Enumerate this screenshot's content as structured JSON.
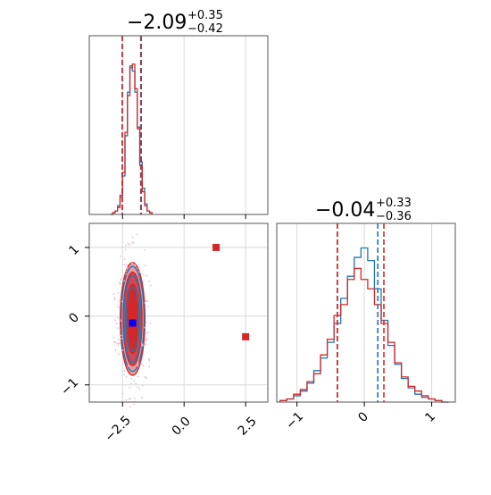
{
  "chart_data": {
    "type": "corner",
    "params": [
      {
        "title": {
          "value": "−2.09",
          "upper": "+0.35",
          "lower": "−0.42"
        },
        "xlim": [
          -3.85,
          3.4
        ],
        "xticks": [
          -2.5,
          0.0,
          2.5
        ],
        "xtick_labels": [
          "−2.5",
          "0.0",
          "2.5"
        ],
        "quantiles_red": [
          -2.51,
          -1.74
        ],
        "quantiles_blue": [
          -2.51,
          -1.76
        ],
        "histogram_bins": [
          -2.95,
          -2.85,
          -2.75,
          -2.65,
          -2.55,
          -2.45,
          -2.35,
          -2.25,
          -2.15,
          -2.05,
          -1.95,
          -1.85,
          -1.75,
          -1.65,
          -1.55,
          -1.45,
          -1.35
        ],
        "histogram_blue": [
          0,
          0.01,
          0.02,
          0.05,
          0.1,
          0.22,
          0.45,
          0.7,
          0.85,
          0.82,
          0.7,
          0.5,
          0.3,
          0.15,
          0.06,
          0.02,
          0.01
        ],
        "histogram_red": [
          0,
          0.01,
          0.02,
          0.04,
          0.11,
          0.24,
          0.47,
          0.68,
          0.84,
          0.86,
          0.72,
          0.49,
          0.28,
          0.13,
          0.05,
          0.02,
          0.01
        ]
      },
      {
        "title": {
          "value": "−0.04",
          "upper": "+0.33",
          "lower": "−0.36"
        },
        "xlim": [
          -1.3,
          1.35
        ],
        "xticks": [
          -1,
          0,
          1
        ],
        "xtick_labels": [
          "−1",
          "0",
          "1"
        ],
        "quantiles_red": [
          -0.4,
          0.29
        ],
        "quantiles_blue": [
          -0.4,
          0.2
        ],
        "histogram_bins": [
          -1.2,
          -1.1,
          -1.0,
          -0.9,
          -0.8,
          -0.7,
          -0.6,
          -0.5,
          -0.4,
          -0.3,
          -0.2,
          -0.1,
          0.0,
          0.1,
          0.2,
          0.3,
          0.4,
          0.5,
          0.6,
          0.7,
          0.8,
          0.9,
          1.0,
          1.1,
          1.2
        ],
        "histogram_blue": [
          0.01,
          0.02,
          0.04,
          0.07,
          0.12,
          0.2,
          0.28,
          0.38,
          0.5,
          0.66,
          0.8,
          0.92,
          0.98,
          0.9,
          0.72,
          0.52,
          0.36,
          0.24,
          0.15,
          0.09,
          0.05,
          0.03,
          0.02,
          0.01,
          0.0
        ],
        "histogram_red": [
          0.01,
          0.02,
          0.05,
          0.08,
          0.13,
          0.18,
          0.3,
          0.4,
          0.55,
          0.62,
          0.78,
          0.85,
          0.78,
          0.72,
          0.62,
          0.5,
          0.38,
          0.25,
          0.16,
          0.1,
          0.07,
          0.04,
          0.02,
          0.01,
          0.0
        ]
      }
    ],
    "joint": {
      "xlim": [
        -3.85,
        3.4
      ],
      "ylim": [
        -1.25,
        1.35
      ],
      "yticks": [
        1,
        0,
        -1
      ],
      "ytick_labels": [
        "1",
        "0",
        "−1"
      ],
      "contour_center": [
        -2.09,
        -0.04
      ],
      "contour_levels": [
        {
          "rx": 0.5,
          "ry": 0.82,
          "fill": "#e89da4"
        },
        {
          "rx": 0.38,
          "ry": 0.68,
          "fill": "#d64550"
        },
        {
          "rx": 0.27,
          "ry": 0.5,
          "fill": "#d62728"
        }
      ],
      "markers_red": [
        [
          1.3,
          1.0
        ],
        [
          2.5,
          -0.3
        ]
      ],
      "marker_blue": [
        -2.09,
        -0.1
      ],
      "grid": true
    },
    "colors": {
      "blue": "#1f77b4",
      "red": "#d62728",
      "grid": "#d8d8d8",
      "axis": "#555555"
    }
  }
}
